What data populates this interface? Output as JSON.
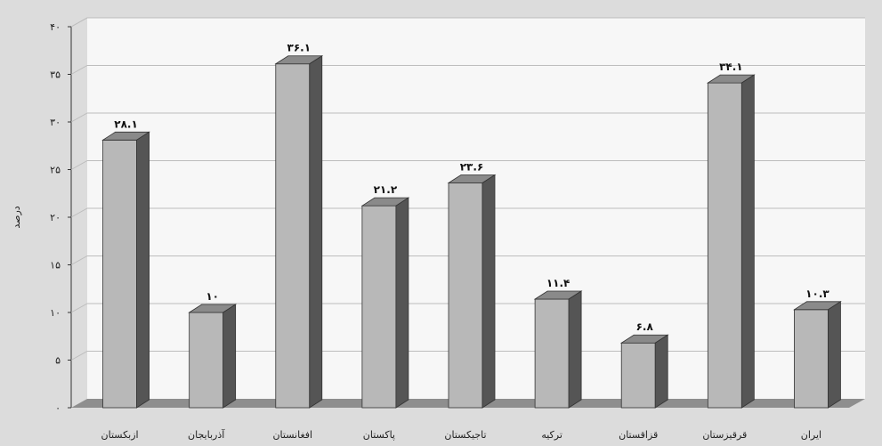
{
  "chart_data": {
    "type": "bar",
    "categories": [
      "ازبکستان",
      "آذربایجان",
      "افغانستان",
      "پاکستان",
      "تاجیکستان",
      "ترکیه",
      "قزاقستان",
      "قرقیزستان",
      "ایران"
    ],
    "values": [
      28.1,
      10,
      36.1,
      21.2,
      23.6,
      11.4,
      6.8,
      34.1,
      10.3
    ],
    "value_labels": [
      "۲۸.۱",
      "۱۰",
      "۳۶.۱",
      "۲۱.۲",
      "۲۳.۶",
      "۱۱.۴",
      "۶.۸",
      "۳۴.۱",
      "۱۰.۳"
    ],
    "yticks": [
      0,
      5,
      10,
      15,
      20,
      25,
      30,
      35,
      40
    ],
    "ytick_labels": [
      "۰",
      "۵",
      "۱۰",
      "۱۵",
      "۲۰",
      "۲۵",
      "۳۰",
      "۳۵",
      "۴۰"
    ],
    "ylim": [
      0,
      40
    ],
    "ylabel": "درصد",
    "title": "",
    "xlabel": "",
    "grid": true,
    "colors": {
      "background": "#dcdcdc",
      "plot_wall": "#f7f7f7",
      "floor": "#8e8e8e",
      "bar_front": "#b8b8b8",
      "bar_top": "#8a8a8a",
      "bar_side": "#555555",
      "grid": "#bdbdbd",
      "outline": "#333333"
    }
  }
}
